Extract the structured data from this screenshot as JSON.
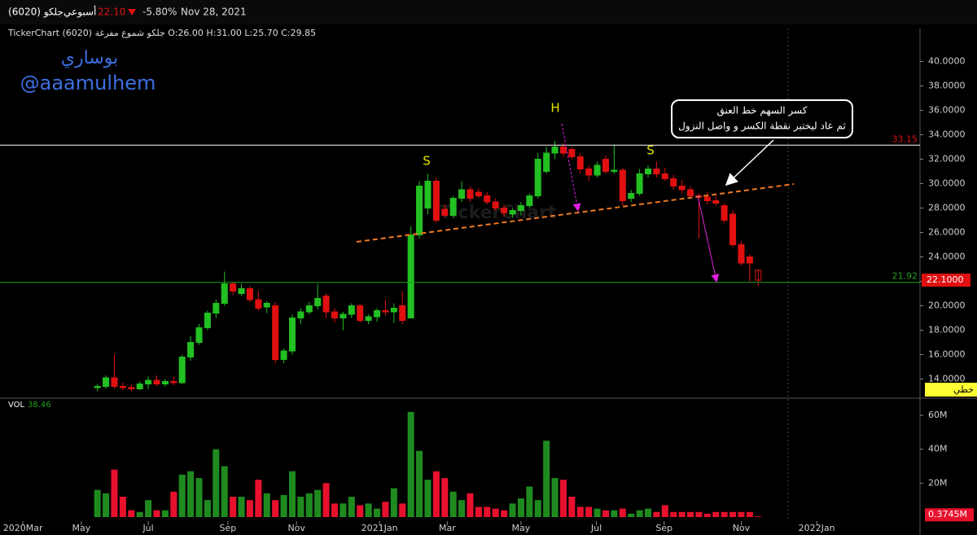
{
  "header": {
    "symbol": "جلكو (6020)",
    "period": "أسبوعي",
    "price": "22.10",
    "change": "-5.80%",
    "date": "Nov 28, 2021",
    "info": "TickerChart جلكو شموع مفرغة (6020) O:26.00 H:31.00 L:25.70 C:29.85"
  },
  "author": [
    "بوساري",
    "@aaamulhem"
  ],
  "watermark": "TickerChart",
  "annotations": [
    "S",
    "H",
    "S"
  ],
  "callout": [
    "كسر السهم خط العنق",
    "ثم عاد ليختبر نقطة الكسر و واصل النزول"
  ],
  "chart_data": [
    {
      "type": "candlestick",
      "categories": [
        null,
        null,
        null,
        null,
        null,
        null,
        null,
        null,
        null,
        null,
        null,
        null,
        null,
        null,
        null,
        null,
        null,
        null,
        null,
        null,
        null,
        null,
        null,
        null,
        null,
        null,
        null,
        null,
        null,
        null,
        null,
        null,
        null,
        null,
        null,
        null,
        null,
        null,
        null,
        null,
        null,
        null,
        null,
        null,
        null,
        null,
        null,
        null,
        null,
        null,
        null,
        null,
        null,
        null,
        null,
        null,
        null,
        null,
        null,
        null,
        null,
        null,
        null,
        null,
        null,
        null,
        null,
        null,
        null,
        null,
        null,
        null,
        null,
        null,
        null,
        null,
        null,
        null,
        null
      ],
      "open": [
        13.3,
        13.4,
        14.1,
        13.4,
        13.3,
        13.2,
        13.6,
        13.9,
        13.6,
        13.8,
        13.7,
        15.8,
        17.0,
        18.2,
        19.4,
        20.2,
        21.8,
        21.0,
        21.4,
        20.5,
        19.9,
        20.0,
        15.6,
        16.3,
        19.0,
        19.5,
        20.0,
        20.8,
        19.5,
        19.0,
        19.3,
        20.0,
        18.8,
        19.1,
        19.6,
        19.5,
        20.0,
        19.0,
        25.8,
        28.0,
        30.2,
        27.9,
        27.4,
        28.8,
        29.5,
        29.3,
        29.0,
        28.5,
        28.0,
        27.5,
        27.8,
        28.2,
        29.0,
        31.0,
        32.5,
        33.0,
        32.8,
        32.2,
        31.2,
        30.7,
        32.0,
        31.0,
        31.1,
        28.8,
        29.2,
        30.8,
        31.2,
        30.8,
        30.4,
        29.8,
        29.5,
        29.0,
        28.9,
        28.6,
        28.2,
        27.5,
        25.0,
        24.0,
        22.9
      ],
      "high": [
        13.6,
        14.3,
        16.0,
        13.7,
        13.6,
        13.8,
        14.2,
        14.3,
        14.0,
        14.2,
        16.0,
        17.5,
        18.5,
        19.6,
        20.5,
        22.8,
        22.0,
        21.8,
        21.6,
        21.2,
        20.4,
        20.3,
        16.5,
        19.3,
        19.8,
        20.3,
        21.8,
        21.0,
        19.8,
        19.5,
        20.2,
        20.2,
        19.3,
        19.8,
        20.5,
        20.2,
        21.2,
        26.5,
        30.2,
        30.8,
        30.5,
        28.3,
        29.0,
        30.2,
        29.8,
        29.6,
        29.3,
        28.8,
        28.3,
        28.0,
        28.5,
        29.2,
        32.5,
        33.0,
        33.5,
        33.3,
        33.0,
        32.5,
        31.5,
        31.8,
        32.3,
        33.2,
        31.3,
        29.5,
        31.2,
        31.5,
        31.8,
        31.3,
        30.7,
        30.3,
        29.8,
        29.2,
        29.3,
        29.0,
        28.4,
        27.8,
        25.3,
        24.2,
        23.0
      ],
      "low": [
        13.0,
        13.2,
        13.2,
        13.1,
        13.0,
        13.1,
        13.2,
        13.4,
        13.4,
        13.5,
        13.6,
        15.5,
        16.8,
        18.0,
        19.0,
        20.0,
        20.9,
        20.8,
        20.3,
        19.6,
        19.4,
        15.3,
        15.3,
        16.0,
        18.5,
        19.3,
        19.7,
        19.0,
        18.6,
        18.0,
        19.0,
        18.6,
        18.5,
        18.7,
        19.2,
        18.6,
        18.5,
        19.0,
        25.5,
        27.5,
        26.8,
        27.2,
        27.2,
        28.5,
        28.5,
        28.8,
        28.3,
        27.8,
        27.3,
        27.2,
        27.4,
        28.0,
        28.8,
        30.8,
        32.0,
        32.2,
        32.0,
        30.8,
        30.2,
        30.5,
        30.8,
        30.8,
        28.2,
        28.5,
        29.0,
        30.5,
        30.5,
        30.2,
        29.5,
        29.2,
        28.8,
        25.5,
        28.3,
        28.2,
        26.8,
        24.8,
        23.3,
        22.0,
        21.6
      ],
      "close": [
        13.4,
        14.1,
        13.4,
        13.3,
        13.2,
        13.6,
        13.9,
        13.6,
        13.8,
        13.7,
        15.8,
        17.0,
        18.2,
        19.4,
        20.2,
        21.8,
        21.2,
        21.4,
        20.5,
        19.8,
        20.2,
        15.6,
        16.3,
        19.0,
        19.5,
        20.0,
        20.6,
        19.5,
        19.0,
        19.3,
        20.0,
        18.8,
        19.1,
        19.6,
        19.5,
        19.8,
        18.8,
        25.8,
        29.8,
        30.2,
        27.0,
        27.4,
        28.8,
        29.5,
        28.8,
        29.0,
        28.5,
        28.0,
        27.6,
        27.8,
        28.2,
        29.0,
        32.0,
        32.5,
        33.0,
        32.5,
        32.2,
        31.2,
        30.7,
        31.5,
        31.0,
        31.1,
        28.6,
        29.2,
        30.8,
        31.2,
        30.8,
        30.4,
        29.8,
        29.5,
        29.0,
        28.9,
        28.6,
        28.4,
        27.0,
        25.0,
        23.5,
        23.5,
        22.1
      ],
      "up_color": "#22c022",
      "down_color": "#e01010",
      "xlim": [
        -11.5,
        97.1
      ],
      "ylim": [
        12.5,
        42.7
      ],
      "yticks": [
        {
          "value": 14,
          "label": "14.0000"
        },
        {
          "value": 16,
          "label": "16.0000"
        },
        {
          "value": 18,
          "label": "18.0000"
        },
        {
          "value": 20,
          "label": "20.0000"
        },
        {
          "value": 22,
          "label": "22.0000"
        },
        {
          "value": 24,
          "label": "24.0000"
        },
        {
          "value": 26,
          "label": "26.0000"
        },
        {
          "value": 28,
          "label": "28.0000"
        },
        {
          "value": 30,
          "label": "30.0000"
        },
        {
          "value": 32,
          "label": "32.0000"
        },
        {
          "value": 34,
          "label": "34.0000"
        },
        {
          "value": 36,
          "label": "36.0000"
        },
        {
          "value": 38,
          "label": "38.0000"
        },
        {
          "value": 40,
          "label": "40.0000"
        }
      ],
      "levels": [
        {
          "value": 33.15,
          "color": "#ffffff",
          "label_color": "#e01010"
        },
        {
          "value": 21.92,
          "color": "#1fa01f",
          "label_color": "#1fa01f"
        }
      ],
      "last_price": {
        "value": 22.1,
        "label": "22.1000"
      },
      "scale_mode": "خطي"
    },
    {
      "type": "bar",
      "name": "VOL",
      "last": 38.46,
      "categories": [
        null,
        null,
        null,
        null,
        null,
        null,
        null,
        null,
        null,
        null,
        null,
        null,
        null,
        null,
        null,
        null,
        null,
        null,
        null,
        null,
        null,
        null,
        null,
        null,
        null,
        null,
        null,
        null,
        null,
        null,
        null,
        null,
        null,
        null,
        null,
        null,
        null,
        null,
        null,
        null,
        null,
        null,
        null,
        null,
        null,
        null,
        null,
        null,
        null,
        null,
        null,
        null,
        null,
        null,
        null,
        null,
        null,
        null,
        null,
        null,
        null,
        null,
        null,
        null,
        null,
        null,
        null,
        null,
        null,
        null,
        null,
        null,
        null,
        null,
        null,
        null,
        null,
        null,
        null
      ],
      "values": [
        16,
        14,
        28,
        12,
        4,
        3,
        10,
        4,
        4,
        15,
        25,
        27,
        23,
        10,
        40,
        30,
        12,
        12,
        10,
        22,
        14,
        10,
        13,
        27,
        12,
        14,
        16,
        20,
        8,
        8,
        12,
        7,
        8,
        5,
        9,
        17,
        8,
        62,
        39,
        22,
        27,
        23,
        15,
        10,
        14,
        6,
        6,
        5,
        4,
        8,
        11,
        18,
        10,
        45,
        23,
        22,
        12,
        6,
        6,
        5,
        4,
        4,
        5,
        2,
        4,
        5,
        3,
        7,
        3,
        3,
        3,
        3,
        2,
        3,
        3,
        3,
        3,
        3,
        0.3745
      ],
      "up_color": "#1f8b1f",
      "down_color": "#e8112d",
      "xlim": [
        -11.5,
        97.1
      ],
      "ylim": [
        0,
        69.6
      ],
      "yticks": [
        {
          "value": 20,
          "label": "20M"
        },
        {
          "value": 40,
          "label": "40M"
        },
        {
          "value": 60,
          "label": "60M"
        }
      ],
      "last_label": {
        "value": 0.3745,
        "label": "0.3745M"
      },
      "xticks": [
        {
          "value": -8.8,
          "label": "2020Mar"
        },
        {
          "value": -1.9,
          "label": "May"
        },
        {
          "value": 6,
          "label": "Jul"
        },
        {
          "value": 15.4,
          "label": "Sep"
        },
        {
          "value": 23.5,
          "label": "Nov"
        },
        {
          "value": 33.3,
          "label": "2021Jan"
        },
        {
          "value": 41.3,
          "label": "Mar"
        },
        {
          "value": 50,
          "label": "May"
        },
        {
          "value": 58.9,
          "label": "Jul"
        },
        {
          "value": 66.9,
          "label": "Sep"
        },
        {
          "value": 76,
          "label": "Nov"
        },
        {
          "value": 84.9,
          "label": "2022Jan"
        }
      ]
    }
  ]
}
